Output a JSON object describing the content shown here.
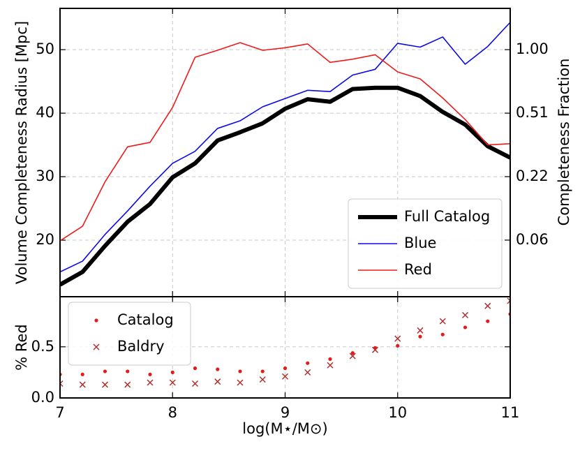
{
  "chart_data": [
    {
      "type": "line",
      "ylabel": "Volume Completeness Radius [Mpc]",
      "y2label": "Completeness Fraction",
      "x": [
        7.0,
        7.2,
        7.4,
        7.6,
        7.8,
        8.0,
        8.2,
        8.4,
        8.6,
        8.8,
        9.0,
        9.2,
        9.4,
        9.6,
        9.8,
        10.0,
        10.2,
        10.4,
        10.6,
        10.8,
        11.0
      ],
      "series": [
        {
          "name": "Full Catalog",
          "color": "#000000",
          "linewidth": 6,
          "values": [
            13.0,
            15.0,
            19.1,
            22.9,
            25.7,
            29.9,
            32.1,
            35.7,
            37.0,
            38.4,
            40.7,
            42.2,
            41.8,
            43.8,
            44.0,
            44.0,
            42.7,
            40.2,
            38.2,
            34.8,
            33.0
          ]
        },
        {
          "name": "Blue",
          "color": "#0a0ae6",
          "linewidth": 1.6,
          "values": [
            15.0,
            16.7,
            20.9,
            24.6,
            28.5,
            32.1,
            34.0,
            37.6,
            38.8,
            41.0,
            42.3,
            43.6,
            43.4,
            46.0,
            46.9,
            51.0,
            50.4,
            52.0,
            47.7,
            50.5,
            54.3
          ]
        },
        {
          "name": "Red",
          "color": "#ee1a1a",
          "linewidth": 1.6,
          "values": [
            19.9,
            22.2,
            29.2,
            34.7,
            35.4,
            40.9,
            48.8,
            49.9,
            51.1,
            49.9,
            50.3,
            50.9,
            48.0,
            48.5,
            49.2,
            46.5,
            45.4,
            42.4,
            39.0,
            35.0,
            35.2
          ]
        }
      ],
      "xlim": [
        7,
        11
      ],
      "ylim": [
        11.1,
        56.5
      ],
      "yticks": [
        20,
        30,
        40,
        50
      ],
      "y2scale": "cube",
      "y2lim": [
        0.0109,
        1.443
      ],
      "y2ticks": [
        {
          "value": 0.064,
          "label": "0.06"
        },
        {
          "value": 0.216,
          "label": "0.22"
        },
        {
          "value": 0.512,
          "label": "0.51"
        },
        {
          "value": 1.0,
          "label": "1.00"
        }
      ],
      "grid": true,
      "legend": "lower right"
    },
    {
      "type": "scatter",
      "ylabel": "% Red",
      "xlabel": "log(M⋆/M⊙)",
      "x": [
        7.0,
        7.2,
        7.4,
        7.6,
        7.8,
        8.0,
        8.2,
        8.4,
        8.6,
        8.8,
        9.0,
        9.2,
        9.4,
        9.6,
        9.8,
        10.0,
        10.2,
        10.4,
        10.6,
        10.8,
        11.0
      ],
      "series": [
        {
          "name": "Catalog",
          "color": "#e41a1c",
          "marker": "o",
          "values": [
            0.23,
            0.23,
            0.26,
            0.26,
            0.23,
            0.25,
            0.29,
            0.28,
            0.26,
            0.26,
            0.29,
            0.34,
            0.38,
            0.44,
            0.49,
            0.51,
            0.6,
            0.62,
            0.69,
            0.75,
            0.82
          ]
        },
        {
          "name": "Baldry",
          "color": "#b03030",
          "marker": "x",
          "values": [
            0.14,
            0.13,
            0.13,
            0.13,
            0.15,
            0.15,
            0.14,
            0.16,
            0.15,
            0.18,
            0.21,
            0.25,
            0.32,
            0.41,
            0.47,
            0.58,
            0.66,
            0.75,
            0.81,
            0.9,
            0.95
          ]
        }
      ],
      "xlim": [
        7,
        11
      ],
      "xticks": [
        7,
        8,
        9,
        10,
        11
      ],
      "ylim": [
        0,
        0.99
      ],
      "yticks": [
        {
          "value": 0,
          "label": "0.0"
        },
        0.5
      ],
      "grid": true,
      "legend": "upper left"
    }
  ]
}
